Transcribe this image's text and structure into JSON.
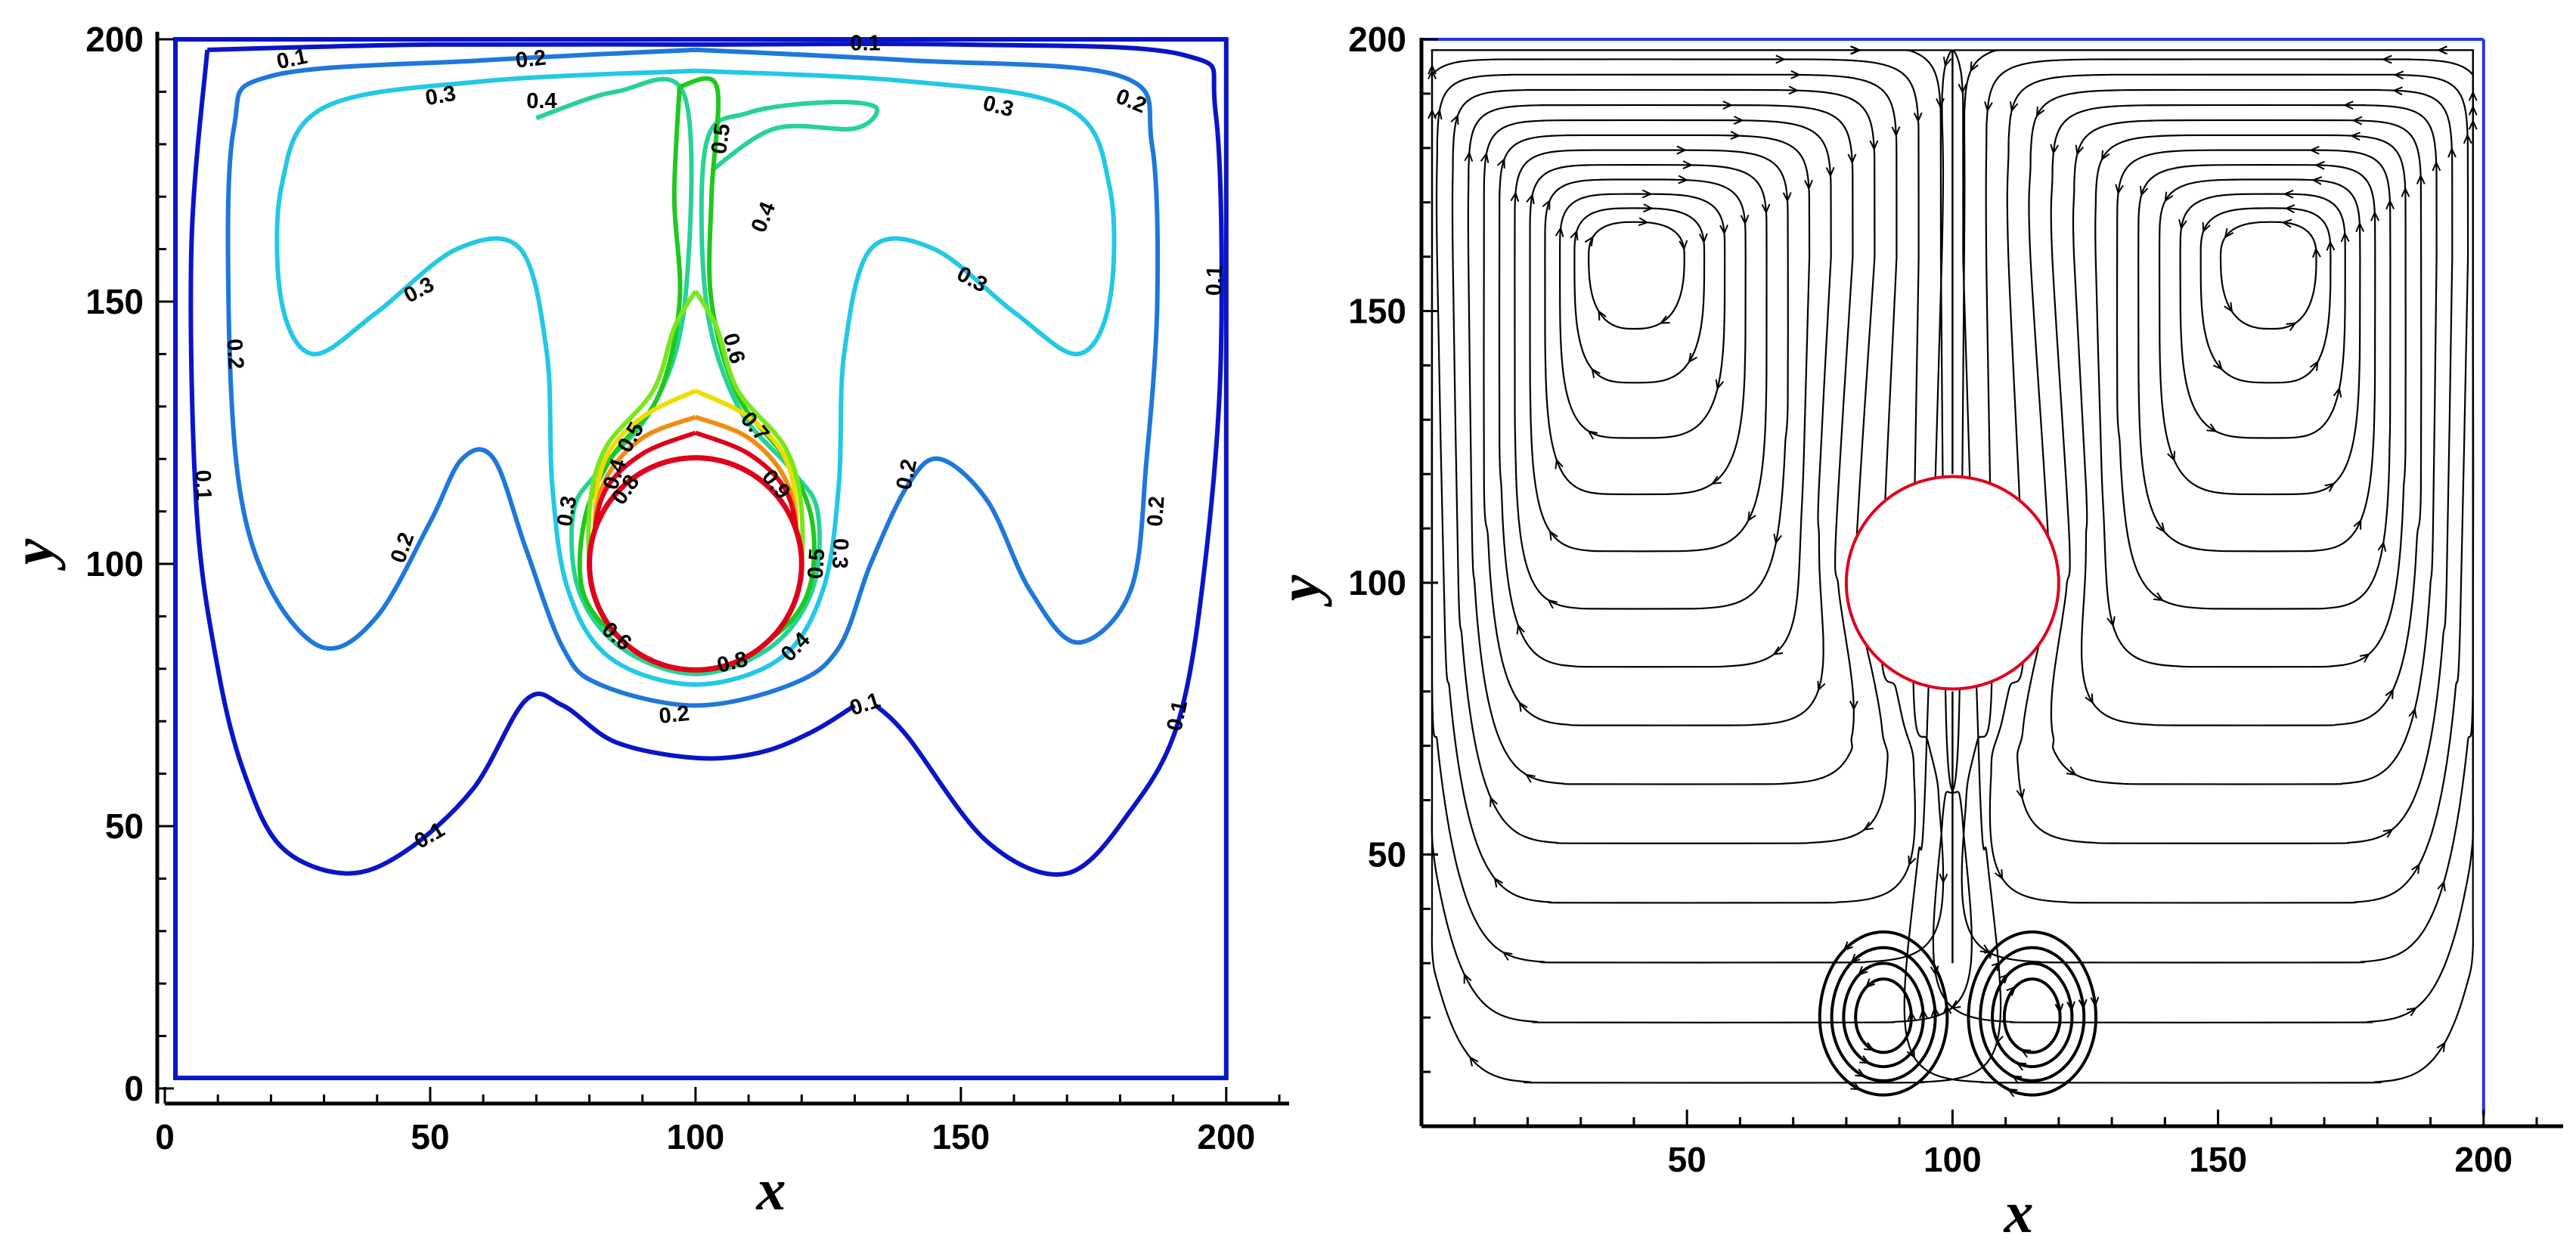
{
  "chart_data": [
    {
      "type": "contour",
      "xlabel": "x",
      "ylabel": "y",
      "xlim": [
        0,
        210
      ],
      "ylim": [
        0,
        200
      ],
      "x_ticks": [
        "0",
        "50",
        "100",
        "150",
        "200"
      ],
      "y_ticks": [
        "0",
        "50",
        "100",
        "150",
        "200"
      ],
      "x_tick_values": [
        0,
        50,
        100,
        150,
        200
      ],
      "y_tick_values": [
        0,
        50,
        100,
        150,
        200
      ],
      "domain_box": [
        [
          2,
          2
        ],
        [
          200,
          200
        ]
      ],
      "cylinder": {
        "center": [
          100,
          100
        ],
        "radius": 20,
        "color": "#e0001b"
      },
      "contour_levels": [
        0.1,
        0.2,
        0.3,
        0.4,
        0.5,
        0.6,
        0.7,
        0.8,
        0.9
      ],
      "level_colors": [
        "#0a14c8",
        "#1e78dc",
        "#23c8e6",
        "#28d296",
        "#1ec81e",
        "#78e61e",
        "#f0dc00",
        "#f08c14",
        "#e0001b"
      ],
      "contours": [
        {
          "level": 0.1,
          "color": "#0a14c8",
          "points": [
            [
              8,
              198
            ],
            [
              50,
              199
            ],
            [
              100,
              199
            ],
            [
              150,
              199
            ],
            [
              192,
              197
            ],
            [
              198,
              186
            ],
            [
              199,
              140
            ],
            [
              196,
              100
            ],
            [
              191,
              70
            ],
            [
              182,
              53
            ],
            [
              170,
              41
            ],
            [
              155,
              47
            ],
            [
              140,
              67
            ],
            [
              134,
              73
            ]
          ]
        },
        {
          "level": 0.1,
          "color": "#0a14c8",
          "points": [
            [
              8,
              198
            ],
            [
              5,
              160
            ],
            [
              6,
              110
            ],
            [
              10,
              80
            ],
            [
              15,
              60
            ],
            [
              22,
              46
            ],
            [
              34,
              41
            ],
            [
              45,
              45
            ],
            [
              58,
              57
            ],
            [
              68,
              74
            ],
            [
              75,
              73
            ],
            [
              85,
              66
            ],
            [
              100,
              63
            ],
            [
              112,
              64
            ],
            [
              122,
              68
            ],
            [
              130,
              73
            ]
          ]
        },
        {
          "level": 0.2,
          "color": "#1e78dc",
          "points": [
            [
              100,
              198
            ],
            [
              60,
              196
            ],
            [
              20,
              193
            ],
            [
              13,
              183
            ],
            [
              12,
              150
            ],
            [
              14,
              115
            ],
            [
              20,
              95
            ],
            [
              30,
              84
            ],
            [
              40,
              90
            ],
            [
              50,
              108
            ],
            [
              56,
              120
            ],
            [
              62,
              120
            ],
            [
              68,
              103
            ],
            [
              75,
              84
            ],
            [
              82,
              77
            ],
            [
              100,
              73
            ],
            [
              118,
              77
            ],
            [
              127,
              84
            ],
            [
              133,
              100
            ],
            [
              140,
              115
            ],
            [
              146,
              120
            ],
            [
              155,
              112
            ],
            [
              163,
              95
            ],
            [
              172,
              85
            ],
            [
              182,
              95
            ],
            [
              185,
              120
            ],
            [
              187,
              150
            ],
            [
              186,
              180
            ],
            [
              180,
              193
            ],
            [
              140,
              196
            ],
            [
              100,
              198
            ]
          ]
        },
        {
          "level": 0.3,
          "color": "#23c8e6",
          "points": [
            [
              100,
              194
            ],
            [
              60,
              192
            ],
            [
              30,
              187
            ],
            [
              22,
              172
            ],
            [
              22,
              150
            ],
            [
              28,
              140
            ],
            [
              40,
              148
            ],
            [
              55,
              160
            ],
            [
              67,
              160
            ],
            [
              72,
              140
            ],
            [
              73,
              115
            ],
            [
              76,
              95
            ],
            [
              84,
              82
            ],
            [
              100,
              77
            ],
            [
              116,
              82
            ],
            [
              124,
              95
            ],
            [
              127,
              115
            ],
            [
              128,
              140
            ],
            [
              133,
              160
            ],
            [
              145,
              160
            ],
            [
              160,
              148
            ],
            [
              172,
              140
            ],
            [
              178,
              150
            ],
            [
              178,
              172
            ],
            [
              170,
              187
            ],
            [
              140,
              192
            ],
            [
              100,
              194
            ]
          ]
        },
        {
          "level": 0.4,
          "color": "#28d296",
          "points": [
            [
              70,
              185
            ],
            [
              85,
              190
            ],
            [
              98,
              189
            ],
            [
              98,
              150
            ],
            [
              92,
              130
            ],
            [
              82,
              118
            ],
            [
              77,
              110
            ],
            [
              78,
              95
            ],
            [
              86,
              84
            ],
            [
              100,
              79
            ],
            [
              114,
              84
            ],
            [
              122,
              95
            ],
            [
              123,
              110
            ],
            [
              118,
              118
            ],
            [
              108,
              130
            ],
            [
              102,
              150
            ],
            [
              102,
              180
            ],
            [
              110,
              186
            ],
            [
              125,
              188
            ],
            [
              134,
              187
            ],
            [
              130,
              183
            ],
            [
              115,
              183
            ],
            [
              103,
              175
            ]
          ]
        },
        {
          "level": 0.5,
          "color": "#1ec81e",
          "points": [
            [
              97,
              191
            ],
            [
              104,
              191
            ],
            [
              103,
              170
            ],
            [
              103,
              150
            ],
            [
              108,
              132
            ],
            [
              117,
              120
            ],
            [
              122,
              108
            ],
            [
              121,
              94
            ],
            [
              113,
              85
            ],
            [
              100,
              81
            ],
            [
              87,
              85
            ],
            [
              79,
              94
            ],
            [
              79,
              108
            ],
            [
              84,
              120
            ],
            [
              93,
              132
            ],
            [
              97,
              150
            ],
            [
              96,
              170
            ],
            [
              97,
              191
            ]
          ]
        },
        {
          "level": 0.6,
          "color": "#78e61e",
          "points": [
            [
              100,
              152
            ],
            [
              104,
              145
            ],
            [
              108,
              133
            ],
            [
              117,
              122
            ],
            [
              120,
              110
            ],
            [
              119,
              95
            ],
            [
              112,
              86
            ],
            [
              100,
              82
            ],
            [
              88,
              86
            ],
            [
              81,
              95
            ],
            [
              80,
              110
            ],
            [
              83,
              122
            ],
            [
              92,
              133
            ],
            [
              96,
              145
            ],
            [
              100,
              152
            ]
          ]
        },
        {
          "level": 0.7,
          "color": "#f0dc00",
          "points": [
            [
              100,
              133
            ],
            [
              110,
              128
            ],
            [
              117,
              120
            ],
            [
              119,
              108
            ],
            [
              117,
              95
            ],
            [
              110,
              86
            ],
            [
              100,
              83
            ],
            [
              90,
              86
            ],
            [
              83,
              95
            ],
            [
              81,
              108
            ],
            [
              83,
              120
            ],
            [
              90,
              128
            ],
            [
              100,
              133
            ]
          ]
        },
        {
          "level": 0.8,
          "color": "#f08c14",
          "points": [
            [
              100,
              128
            ],
            [
              110,
              124
            ],
            [
              117,
              116
            ],
            [
              119,
              105
            ],
            [
              117,
              94
            ],
            [
              109,
              86
            ],
            [
              100,
              84
            ],
            [
              91,
              86
            ],
            [
              83,
              94
            ],
            [
              81,
              105
            ],
            [
              83,
              116
            ],
            [
              90,
              124
            ],
            [
              100,
              128
            ]
          ]
        },
        {
          "level": 0.9,
          "color": "#e0001b",
          "points": [
            [
              100,
              125
            ],
            [
              110,
              121
            ],
            [
              117,
              114
            ],
            [
              119,
              104
            ],
            [
              117,
              93
            ],
            [
              109,
              85
            ],
            [
              100,
              83
            ],
            [
              91,
              85
            ],
            [
              83,
              93
            ],
            [
              81,
              104
            ],
            [
              83,
              114
            ],
            [
              90,
              121
            ],
            [
              100,
              125
            ]
          ]
        }
      ],
      "contour_labels": [
        {
          "text": "0.1",
          "x": 24,
          "y": 196,
          "angle": -12
        },
        {
          "text": "0.2",
          "x": 69,
          "y": 196,
          "angle": -6
        },
        {
          "text": "0.1",
          "x": 132,
          "y": 199,
          "angle": 0
        },
        {
          "text": "0.3",
          "x": 52,
          "y": 189,
          "angle": -10
        },
        {
          "text": "0.4",
          "x": 71,
          "y": 188,
          "angle": 0
        },
        {
          "text": "0.5",
          "x": 105,
          "y": 181,
          "angle": -82
        },
        {
          "text": "0.3",
          "x": 157,
          "y": 187,
          "angle": 14
        },
        {
          "text": "0.2",
          "x": 182,
          "y": 188,
          "angle": 22
        },
        {
          "text": "0.4",
          "x": 113,
          "y": 166,
          "angle": -68
        },
        {
          "text": "0.3",
          "x": 48,
          "y": 152,
          "angle": -28
        },
        {
          "text": "0.3",
          "x": 152,
          "y": 154,
          "angle": 28
        },
        {
          "text": "0.1",
          "x": 198,
          "y": 154,
          "angle": -88
        },
        {
          "text": "0.2",
          "x": 13,
          "y": 140,
          "angle": 86
        },
        {
          "text": "0.6",
          "x": 107,
          "y": 141,
          "angle": 74
        },
        {
          "text": "0.7",
          "x": 111,
          "y": 126,
          "angle": 50
        },
        {
          "text": "0.5",
          "x": 88,
          "y": 124,
          "angle": -60
        },
        {
          "text": "0.4",
          "x": 85,
          "y": 117,
          "angle": -72
        },
        {
          "text": "0.9",
          "x": 115,
          "y": 115,
          "angle": 50
        },
        {
          "text": "0.8",
          "x": 87,
          "y": 114,
          "angle": -55
        },
        {
          "text": "0.2",
          "x": 140,
          "y": 117,
          "angle": -78
        },
        {
          "text": "0.1",
          "x": 7,
          "y": 115,
          "angle": 88
        },
        {
          "text": "0.3",
          "x": 76,
          "y": 110,
          "angle": -80
        },
        {
          "text": "0.2",
          "x": 187,
          "y": 110,
          "angle": -86
        },
        {
          "text": "0.5",
          "x": 123,
          "y": 100,
          "angle": -86
        },
        {
          "text": "0.3",
          "x": 127,
          "y": 102,
          "angle": 92
        },
        {
          "text": "0.2",
          "x": 45,
          "y": 103,
          "angle": -70
        },
        {
          "text": "0.6",
          "x": 85,
          "y": 86,
          "angle": 40
        },
        {
          "text": "0.4",
          "x": 119,
          "y": 84,
          "angle": -46
        },
        {
          "text": "0.8",
          "x": 107,
          "y": 81,
          "angle": -14
        },
        {
          "text": "0.2",
          "x": 96,
          "y": 71,
          "angle": -6
        },
        {
          "text": "0.1",
          "x": 132,
          "y": 73,
          "angle": -18
        },
        {
          "text": "0.1",
          "x": 191,
          "y": 71,
          "angle": -78
        },
        {
          "text": "0.1",
          "x": 50,
          "y": 48,
          "angle": -30
        }
      ]
    },
    {
      "type": "streamline",
      "xlabel": "x",
      "ylabel": "y",
      "xlim": [
        0,
        210
      ],
      "ylim": [
        0,
        200
      ],
      "x_ticks": [
        "50",
        "100",
        "150",
        "200"
      ],
      "y_ticks": [
        "50",
        "100",
        "150",
        "200"
      ],
      "x_tick_values": [
        50,
        100,
        150,
        200
      ],
      "y_tick_values": [
        50,
        100,
        150,
        200
      ],
      "domain_box": [
        [
          0,
          0
        ],
        [
          200,
          200
        ]
      ],
      "cylinder": {
        "center": [
          100,
          100
        ],
        "radius": 20,
        "color": "#e0001b"
      },
      "vortices": [
        {
          "center": [
            40,
            160
          ],
          "rotation": "counterclockwise",
          "loop_count": 14
        },
        {
          "center": [
            160,
            160
          ],
          "rotation": "clockwise",
          "loop_count": 14
        },
        {
          "center": [
            87,
            20
          ],
          "rotation": "clockwise",
          "loop_count": 4
        },
        {
          "center": [
            115,
            20
          ],
          "rotation": "counterclockwise",
          "loop_count": 4
        }
      ],
      "streamline_color": "#000000",
      "frame_right_top_color": "#2233ee"
    }
  ]
}
